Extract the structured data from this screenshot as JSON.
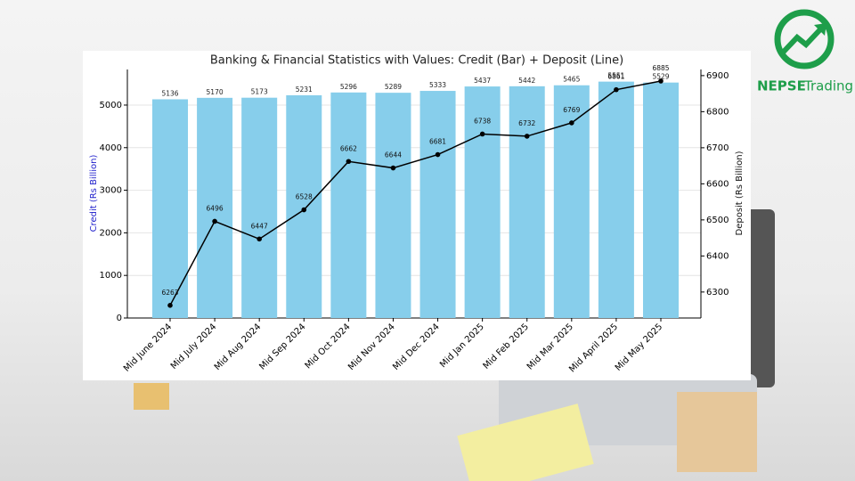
{
  "chart_data": {
    "type": "bar-line",
    "title": "Banking & Financial Statistics with Values: Credit (Bar) + Deposit (Line)",
    "ylabel": "Credit (Rs Billion)",
    "ylabel_color": "#2222cc",
    "y2label": "Deposit (Rs Billion)",
    "categories": [
      "Mid June 2024",
      "Mid July 2024",
      "Mid Aug 2024",
      "Mid Sep 2024",
      "Mid Oct 2024",
      "Mid Nov 2024",
      "Mid Dec 2024",
      "Mid Jan 2025",
      "Mid Feb 2025",
      "Mid Mar 2025",
      "Mid April 2025",
      "Mid May 2025"
    ],
    "series": [
      {
        "name": "Credit",
        "type": "bar",
        "color": "#87ceeb",
        "values": [
          5136,
          5170,
          5173,
          5231,
          5296,
          5289,
          5333,
          5437,
          5442,
          5465,
          5551,
          5529
        ]
      },
      {
        "name": "Deposit",
        "type": "line",
        "axis": "y2",
        "color": "#000000",
        "values": [
          6263,
          6496,
          6447,
          6528,
          6662,
          6644,
          6681,
          6738,
          6732,
          6769,
          6861,
          6885
        ]
      }
    ],
    "ylim": [
      0,
      5836
    ],
    "yticks": [
      0,
      1000,
      2000,
      3000,
      4000,
      5000
    ],
    "y2lim": [
      6228,
      6917
    ],
    "y2ticks": [
      6300,
      6400,
      6500,
      6600,
      6700,
      6800,
      6900
    ],
    "grid": true
  },
  "logo": {
    "bold": "NEPSE",
    "light": "Trading"
  }
}
